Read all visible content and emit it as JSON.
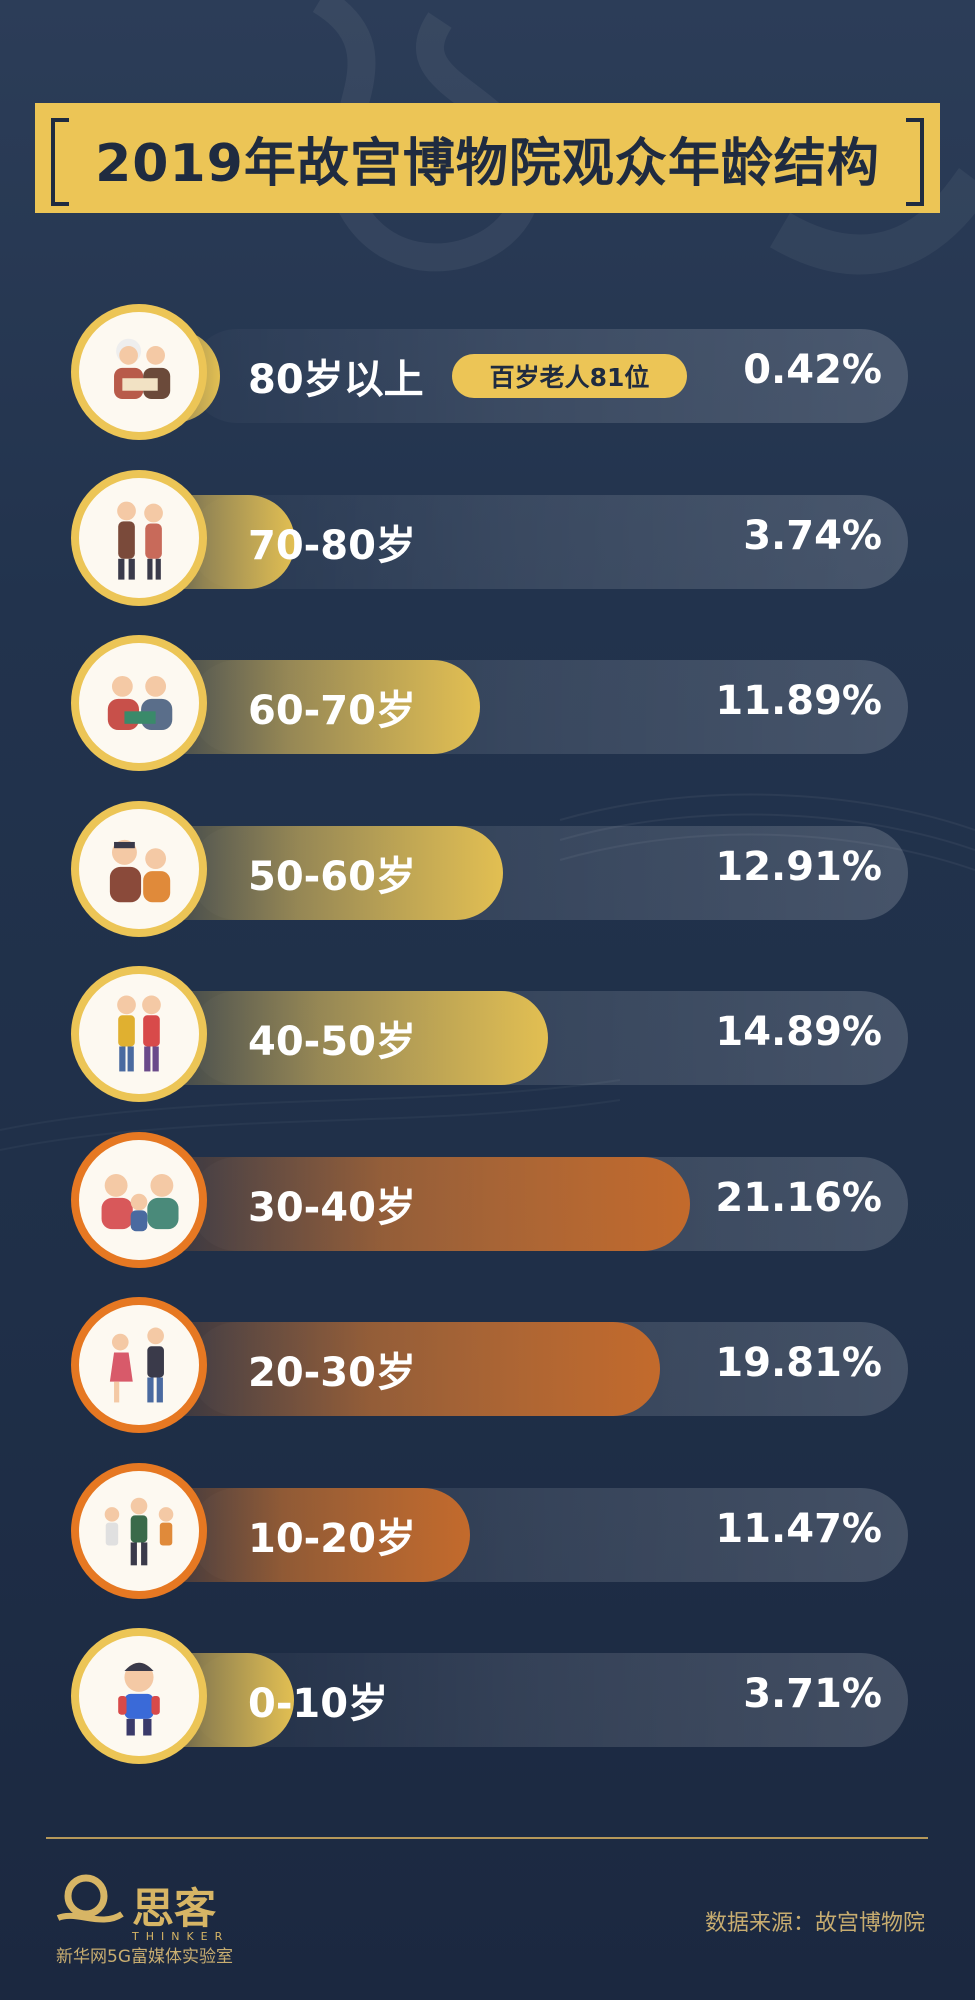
{
  "title": "2019年故宫博物院观众年龄结构",
  "badge_text": "百岁老人81位",
  "source": "数据来源：故宫博物院",
  "brand": {
    "name": "思客",
    "name_en": "THINKER",
    "org": "新华网5G富媒体实验室"
  },
  "colors": {
    "gold": "#ecc556",
    "orange": "#e67822",
    "navy": "#22334d"
  },
  "chart_data": {
    "type": "bar",
    "orientation": "horizontal",
    "categories": [
      "80岁以上",
      "70-80岁",
      "60-70岁",
      "50-60岁",
      "40-50岁",
      "30-40岁",
      "20-30岁",
      "10-20岁",
      "0-10岁"
    ],
    "values": [
      0.42,
      3.74,
      11.89,
      12.91,
      14.89,
      21.16,
      19.81,
      11.47,
      3.71
    ],
    "value_labels": [
      "0.42%",
      "3.74%",
      "11.89%",
      "12.91%",
      "14.89%",
      "21.16%",
      "19.81%",
      "11.47%",
      "3.71%"
    ],
    "fill_colors": [
      "gold",
      "gold",
      "gold",
      "gold",
      "gold",
      "orange",
      "orange",
      "orange",
      "gold"
    ],
    "icons": [
      "elderly-couple-reading-icon",
      "elderly-couple-walking-icon",
      "grandparents-reading-icon",
      "middle-aged-couple-icon",
      "couple-standing-icon",
      "family-with-child-icon",
      "young-people-dancing-icon",
      "teenagers-playing-icon",
      "child-with-backpack-icon"
    ],
    "unit": "%",
    "xlim": [
      0,
      25
    ],
    "grid": false,
    "legend": "none"
  }
}
